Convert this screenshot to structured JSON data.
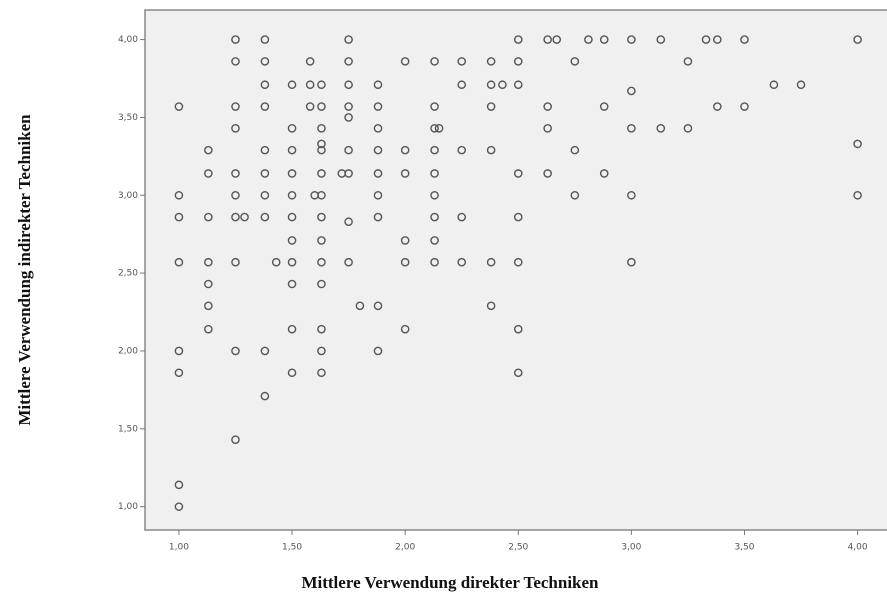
{
  "chart_data": {
    "type": "scatter",
    "x_label": "Mittlere Verwendung direkter Techniken",
    "y_label": "Mittlere Verwendung indirekter Techniken",
    "xlim": [
      0.85,
      4.13
    ],
    "ylim": [
      0.85,
      4.19
    ],
    "xticks": [
      {
        "value": 1,
        "label": "1,00"
      },
      {
        "value": 1.5,
        "label": "1,50"
      },
      {
        "value": 2,
        "label": "2,00"
      },
      {
        "value": 2.5,
        "label": "2,50"
      },
      {
        "value": 3,
        "label": "3,00"
      },
      {
        "value": 3.5,
        "label": "3,50"
      },
      {
        "value": 4,
        "label": "4,00"
      }
    ],
    "yticks": [
      {
        "value": 1,
        "label": "1,00"
      },
      {
        "value": 1.5,
        "label": "1,50"
      },
      {
        "value": 2,
        "label": "2,00"
      },
      {
        "value": 2.5,
        "label": "2,50"
      },
      {
        "value": 3,
        "label": "3,00"
      },
      {
        "value": 3.5,
        "label": "3,50"
      },
      {
        "value": 4,
        "label": "4,00"
      }
    ],
    "color": "#555555",
    "x": [
      1.25,
      1.38,
      1.75,
      2.5,
      2.63,
      2.67,
      2.81,
      2.88,
      3,
      3.13,
      3.33,
      3.38,
      3.5,
      4,
      1.25,
      1.38,
      1.58,
      1.75,
      2,
      2.13,
      2.25,
      2.38,
      2.5,
      2.75,
      3.25,
      1.38,
      1.5,
      1.58,
      1.63,
      1.75,
      1.88,
      2.25,
      2.38,
      2.43,
      2.5,
      3.63,
      3.75,
      3,
      1,
      1.25,
      1.38,
      1.58,
      1.63,
      1.75,
      1.88,
      2.13,
      2.38,
      2.63,
      2.88,
      3.38,
      3.5,
      1.75,
      1.25,
      1.5,
      1.63,
      1.88,
      2.13,
      2.15,
      2.63,
      3,
      3.13,
      3.25,
      1.63,
      4,
      1.13,
      1.38,
      1.5,
      1.63,
      1.75,
      1.88,
      2,
      2.13,
      2.25,
      2.38,
      2.75,
      1.13,
      1.25,
      1.38,
      1.5,
      1.63,
      1.72,
      1.75,
      1.88,
      2,
      2.13,
      2.5,
      2.63,
      2.88,
      1,
      1.25,
      1.38,
      1.5,
      1.6,
      1.63,
      1.88,
      2.13,
      2.75,
      3,
      4,
      1,
      1.13,
      1.25,
      1.29,
      1.38,
      1.5,
      1.63,
      1.88,
      2.13,
      2.25,
      2.5,
      1.75,
      1.5,
      1.63,
      2,
      2.13,
      1,
      1.13,
      1.25,
      1.43,
      1.5,
      1.63,
      1.75,
      2,
      2.13,
      2.25,
      2.38,
      2.5,
      3,
      1.13,
      1.5,
      1.63,
      1.13,
      1.8,
      1.88,
      2.38,
      1.13,
      1.5,
      1.63,
      2,
      2.5,
      1,
      1.25,
      1.38,
      1.63,
      1.88,
      1,
      1.5,
      1.63,
      2.5,
      1.38,
      1.25,
      1,
      1
    ],
    "values": [
      4,
      4,
      4,
      4,
      4,
      4,
      4,
      4,
      4,
      4,
      4,
      4,
      4,
      4,
      3.86,
      3.86,
      3.86,
      3.86,
      3.86,
      3.86,
      3.86,
      3.86,
      3.86,
      3.86,
      3.86,
      3.71,
      3.71,
      3.71,
      3.71,
      3.71,
      3.71,
      3.71,
      3.71,
      3.71,
      3.71,
      3.71,
      3.71,
      3.67,
      3.57,
      3.57,
      3.57,
      3.57,
      3.57,
      3.57,
      3.57,
      3.57,
      3.57,
      3.57,
      3.57,
      3.57,
      3.57,
      3.5,
      3.43,
      3.43,
      3.43,
      3.43,
      3.43,
      3.43,
      3.43,
      3.43,
      3.43,
      3.43,
      3.33,
      3.33,
      3.29,
      3.29,
      3.29,
      3.29,
      3.29,
      3.29,
      3.29,
      3.29,
      3.29,
      3.29,
      3.29,
      3.14,
      3.14,
      3.14,
      3.14,
      3.14,
      3.14,
      3.14,
      3.14,
      3.14,
      3.14,
      3.14,
      3.14,
      3.14,
      3,
      3,
      3,
      3,
      3,
      3,
      3,
      3,
      3,
      3,
      3,
      2.86,
      2.86,
      2.86,
      2.86,
      2.86,
      2.86,
      2.86,
      2.86,
      2.86,
      2.86,
      2.86,
      2.83,
      2.71,
      2.71,
      2.71,
      2.71,
      2.57,
      2.57,
      2.57,
      2.57,
      2.57,
      2.57,
      2.57,
      2.57,
      2.57,
      2.57,
      2.57,
      2.57,
      2.57,
      2.43,
      2.43,
      2.43,
      2.29,
      2.29,
      2.29,
      2.29,
      2.14,
      2.14,
      2.14,
      2.14,
      2.14,
      2,
      2,
      2,
      2,
      2,
      1.86,
      1.86,
      1.86,
      1.86,
      1.71,
      1.43,
      1.14,
      1
    ]
  }
}
